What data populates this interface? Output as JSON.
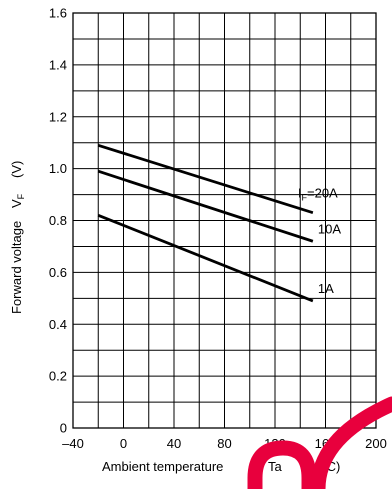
{
  "chart_data": {
    "type": "line",
    "xlabel": "Ambient temperature",
    "xlabel_symbol": "Ta",
    "xlabel_unit": "(˚C)",
    "ylabel": "Forward voltage",
    "ylabel_symbol": "V",
    "ylabel_symbol_sub": "F",
    "ylabel_unit": "(V)",
    "xlim": [
      -40,
      200
    ],
    "ylim": [
      0,
      1.6
    ],
    "x_ticks": [
      "–40",
      "0",
      "40",
      "80",
      "120",
      "160",
      "200"
    ],
    "y_ticks": [
      "0",
      "0.2",
      "0.4",
      "0.6",
      "0.8",
      "1.0",
      "1.2",
      "1.4",
      "1.6"
    ],
    "grid": true,
    "series": [
      {
        "label_prefix": "I",
        "label_sub": "F",
        "label_suffix": "=20A",
        "x": [
          -20,
          150
        ],
        "y": [
          1.09,
          0.83
        ]
      },
      {
        "label_prefix": "",
        "label_sub": "",
        "label_suffix": "10A",
        "x": [
          -20,
          150
        ],
        "y": [
          0.99,
          0.72
        ]
      },
      {
        "label_prefix": "",
        "label_sub": "",
        "label_suffix": "1A",
        "x": [
          -20,
          150
        ],
        "y": [
          0.82,
          0.49
        ]
      }
    ]
  },
  "colors": {
    "line": "#000000",
    "grid": "#000000",
    "watermark": "#e8003d"
  }
}
